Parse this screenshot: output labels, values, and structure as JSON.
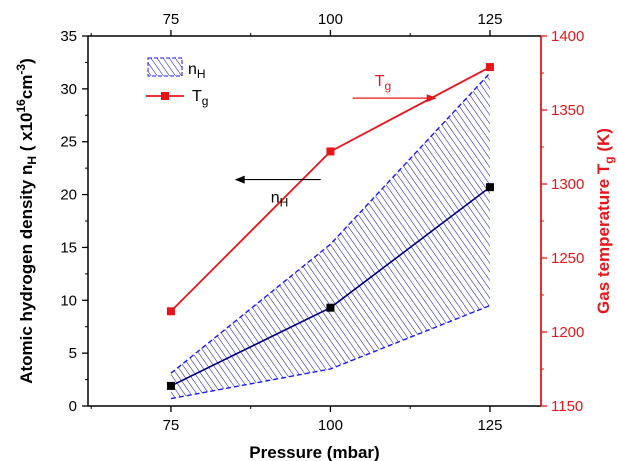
{
  "chart_data": {
    "type": "line",
    "xlabel": "Pressure (mbar)",
    "ylabel_left": {
      "main": "Atomic hydrogen density n",
      "sub": "H",
      "mid": " ( x10",
      "sup1": "16",
      "mid2": "cm",
      "sup2": "-3",
      "end": ")"
    },
    "ylabel_right": {
      "main": "Gas temperature T",
      "sub": "g",
      "end": " (K)"
    },
    "xlim": [
      62,
      133
    ],
    "ylim_left": [
      0,
      35
    ],
    "ylim_right": [
      1150,
      1400
    ],
    "x_ticks": [
      "75",
      "100",
      "125"
    ],
    "x_ticks_values": [
      75,
      100,
      125
    ],
    "y_left_ticks": [
      "0",
      "5",
      "10",
      "15",
      "20",
      "25",
      "30",
      "35"
    ],
    "y_left_ticks_values": [
      0,
      5,
      10,
      15,
      20,
      25,
      30,
      35
    ],
    "y_right_ticks": [
      "1150",
      "1200",
      "1250",
      "1300",
      "1350",
      "1400"
    ],
    "y_right_ticks_values": [
      1150,
      1200,
      1250,
      1300,
      1350,
      1400
    ],
    "series": [
      {
        "name": "n_H",
        "axis": "left",
        "x": [
          75,
          100,
          125
        ],
        "y": [
          1.9,
          9.3,
          20.7
        ],
        "upper": [
          3.1,
          15.3,
          31.5
        ],
        "lower": [
          0.7,
          3.5,
          9.5
        ],
        "color": "#000080",
        "fill": "#1a1a9e"
      },
      {
        "name": "T_g",
        "axis": "right",
        "x": [
          75,
          100,
          125
        ],
        "y": [
          1214,
          1322,
          1379
        ],
        "color": "#e8161b"
      }
    ],
    "legend": {
      "position": "top-left",
      "entries": [
        {
          "main": "n",
          "sub": "H"
        },
        {
          "main": "T",
          "sub": "g"
        }
      ]
    },
    "annotations": [
      {
        "main": "n",
        "sub": "H",
        "arrow": "left",
        "color": "#000000",
        "x": 87.5,
        "y": 20
      },
      {
        "main": "T",
        "sub": "g",
        "arrow": "right",
        "color": "#e8161b",
        "x": 106,
        "y_right": 1358
      }
    ],
    "grid": false
  }
}
